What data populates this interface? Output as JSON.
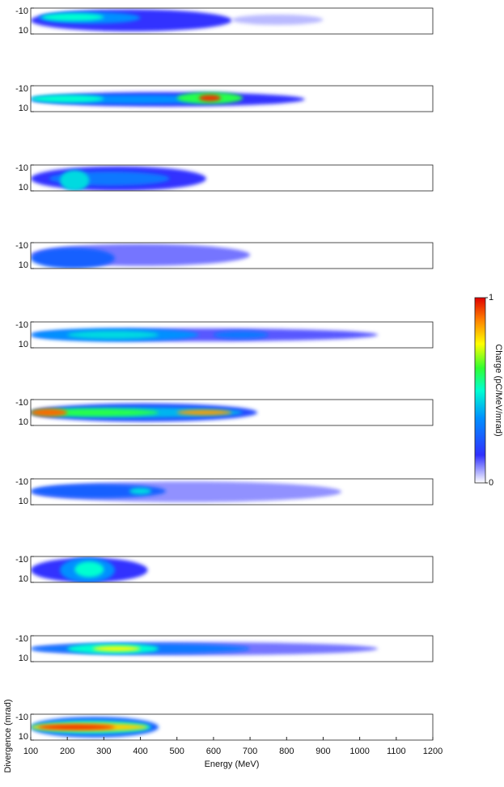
{
  "chart_data": [
    {
      "type": "heatmap",
      "xlim": [
        100,
        1200
      ],
      "ylim": [
        -10,
        10
      ],
      "y_inverted": true,
      "yticks": [
        -10,
        10
      ],
      "spots": [
        {
          "x": [
            100,
            650
          ],
          "y": [
            -9,
            8
          ],
          "charge": 0.15
        },
        {
          "x": [
            650,
            900
          ],
          "y": [
            -5,
            3
          ],
          "charge": 0.05
        },
        {
          "x": [
            120,
            400
          ],
          "y": [
            -7,
            2
          ],
          "charge": 0.35
        },
        {
          "x": [
            130,
            300
          ],
          "y": [
            -6,
            0
          ],
          "charge": 0.5
        }
      ]
    },
    {
      "type": "heatmap",
      "xlim": [
        100,
        1200
      ],
      "ylim": [
        -10,
        10
      ],
      "y_inverted": true,
      "yticks": [
        -10,
        10
      ],
      "spots": [
        {
          "x": [
            100,
            850
          ],
          "y": [
            -5,
            6
          ],
          "charge": 0.15
        },
        {
          "x": [
            100,
            650
          ],
          "y": [
            -3,
            4
          ],
          "charge": 0.35
        },
        {
          "x": [
            100,
            300
          ],
          "y": [
            -3,
            3
          ],
          "charge": 0.5
        },
        {
          "x": [
            500,
            680
          ],
          "y": [
            -5,
            4
          ],
          "charge": 0.6
        },
        {
          "x": [
            560,
            620
          ],
          "y": [
            -3,
            2
          ],
          "charge": 0.95
        }
      ]
    },
    {
      "type": "heatmap",
      "xlim": [
        100,
        1200
      ],
      "ylim": [
        -10,
        10
      ],
      "y_inverted": true,
      "yticks": [
        -10,
        10
      ],
      "spots": [
        {
          "x": [
            100,
            580
          ],
          "y": [
            -9,
            10
          ],
          "charge": 0.15
        },
        {
          "x": [
            150,
            480
          ],
          "y": [
            -5,
            6
          ],
          "charge": 0.3
        },
        {
          "x": [
            180,
            260
          ],
          "y": [
            -6,
            10
          ],
          "charge": 0.45
        }
      ]
    },
    {
      "type": "heatmap",
      "xlim": [
        100,
        1200
      ],
      "ylim": [
        -10,
        10
      ],
      "y_inverted": true,
      "yticks": [
        -10,
        10
      ],
      "spots": [
        {
          "x": [
            100,
            700
          ],
          "y": [
            -9,
            8
          ],
          "charge": 0.1
        },
        {
          "x": [
            100,
            330
          ],
          "y": [
            -6,
            10
          ],
          "charge": 0.25
        }
      ]
    },
    {
      "type": "heatmap",
      "xlim": [
        100,
        1200
      ],
      "ylim": [
        -10,
        10
      ],
      "y_inverted": true,
      "yticks": [
        -10,
        10
      ],
      "spots": [
        {
          "x": [
            100,
            1050
          ],
          "y": [
            -5,
            5
          ],
          "charge": 0.12
        },
        {
          "x": [
            100,
            560
          ],
          "y": [
            -5,
            5
          ],
          "charge": 0.35
        },
        {
          "x": [
            600,
            750
          ],
          "y": [
            -3,
            3
          ],
          "charge": 0.3
        },
        {
          "x": [
            200,
            450
          ],
          "y": [
            -3,
            3
          ],
          "charge": 0.45
        }
      ]
    },
    {
      "type": "heatmap",
      "xlim": [
        100,
        1200
      ],
      "ylim": [
        -10,
        10
      ],
      "y_inverted": true,
      "yticks": [
        -10,
        10
      ],
      "spots": [
        {
          "x": [
            100,
            720
          ],
          "y": [
            -7,
            7
          ],
          "charge": 0.2
        },
        {
          "x": [
            100,
            680
          ],
          "y": [
            -4,
            4
          ],
          "charge": 0.4
        },
        {
          "x": [
            100,
            450
          ],
          "y": [
            -3,
            3
          ],
          "charge": 0.6
        },
        {
          "x": [
            500,
            650
          ],
          "y": [
            -2,
            2
          ],
          "charge": 0.85
        },
        {
          "x": [
            100,
            200
          ],
          "y": [
            -3,
            3
          ],
          "charge": 0.9
        }
      ]
    },
    {
      "type": "heatmap",
      "xlim": [
        100,
        1200
      ],
      "ylim": [
        -10,
        10
      ],
      "y_inverted": true,
      "yticks": [
        -10,
        10
      ],
      "spots": [
        {
          "x": [
            100,
            950
          ],
          "y": [
            -8,
            8
          ],
          "charge": 0.08
        },
        {
          "x": [
            100,
            470
          ],
          "y": [
            -6,
            5
          ],
          "charge": 0.25
        },
        {
          "x": [
            370,
            430
          ],
          "y": [
            -3,
            2
          ],
          "charge": 0.45
        }
      ]
    },
    {
      "type": "heatmap",
      "xlim": [
        100,
        1200
      ],
      "ylim": [
        -10,
        10
      ],
      "y_inverted": true,
      "yticks": [
        -10,
        10
      ],
      "spots": [
        {
          "x": [
            100,
            420
          ],
          "y": [
            -9,
            10
          ],
          "charge": 0.15
        },
        {
          "x": [
            180,
            330
          ],
          "y": [
            -9,
            10
          ],
          "charge": 0.35
        },
        {
          "x": [
            220,
            300
          ],
          "y": [
            -6,
            6
          ],
          "charge": 0.5
        }
      ]
    },
    {
      "type": "heatmap",
      "xlim": [
        100,
        1200
      ],
      "ylim": [
        -10,
        10
      ],
      "y_inverted": true,
      "yticks": [
        -10,
        10
      ],
      "spots": [
        {
          "x": [
            100,
            1050
          ],
          "y": [
            -5,
            5
          ],
          "charge": 0.1
        },
        {
          "x": [
            100,
            700
          ],
          "y": [
            -4,
            4
          ],
          "charge": 0.3
        },
        {
          "x": [
            200,
            450
          ],
          "y": [
            -4,
            4
          ],
          "charge": 0.5
        },
        {
          "x": [
            270,
            400
          ],
          "y": [
            -2,
            2
          ],
          "charge": 0.75
        }
      ]
    },
    {
      "type": "heatmap",
      "xlim": [
        100,
        1200
      ],
      "ylim": [
        -10,
        10
      ],
      "y_inverted": true,
      "yticks": [
        -10,
        10
      ],
      "xticks": [
        100,
        200,
        300,
        400,
        500,
        600,
        700,
        800,
        900,
        1000,
        1100,
        1200
      ],
      "xlabel": "Energy (MeV)",
      "ylabel": "Divergence (mrad)",
      "spots": [
        {
          "x": [
            100,
            450
          ],
          "y": [
            -8,
            8
          ],
          "charge": 0.25
        },
        {
          "x": [
            100,
            430
          ],
          "y": [
            -5,
            5
          ],
          "charge": 0.5
        },
        {
          "x": [
            100,
            420
          ],
          "y": [
            -3,
            3
          ],
          "charge": 0.8
        },
        {
          "x": [
            120,
            330
          ],
          "y": [
            -2,
            2
          ],
          "charge": 0.95
        }
      ]
    },
    {
      "type": "colorbar",
      "label": "Charge (pC/MeV/mrad)",
      "lim": [
        0,
        1
      ],
      "ticks": [
        0,
        1
      ]
    }
  ]
}
